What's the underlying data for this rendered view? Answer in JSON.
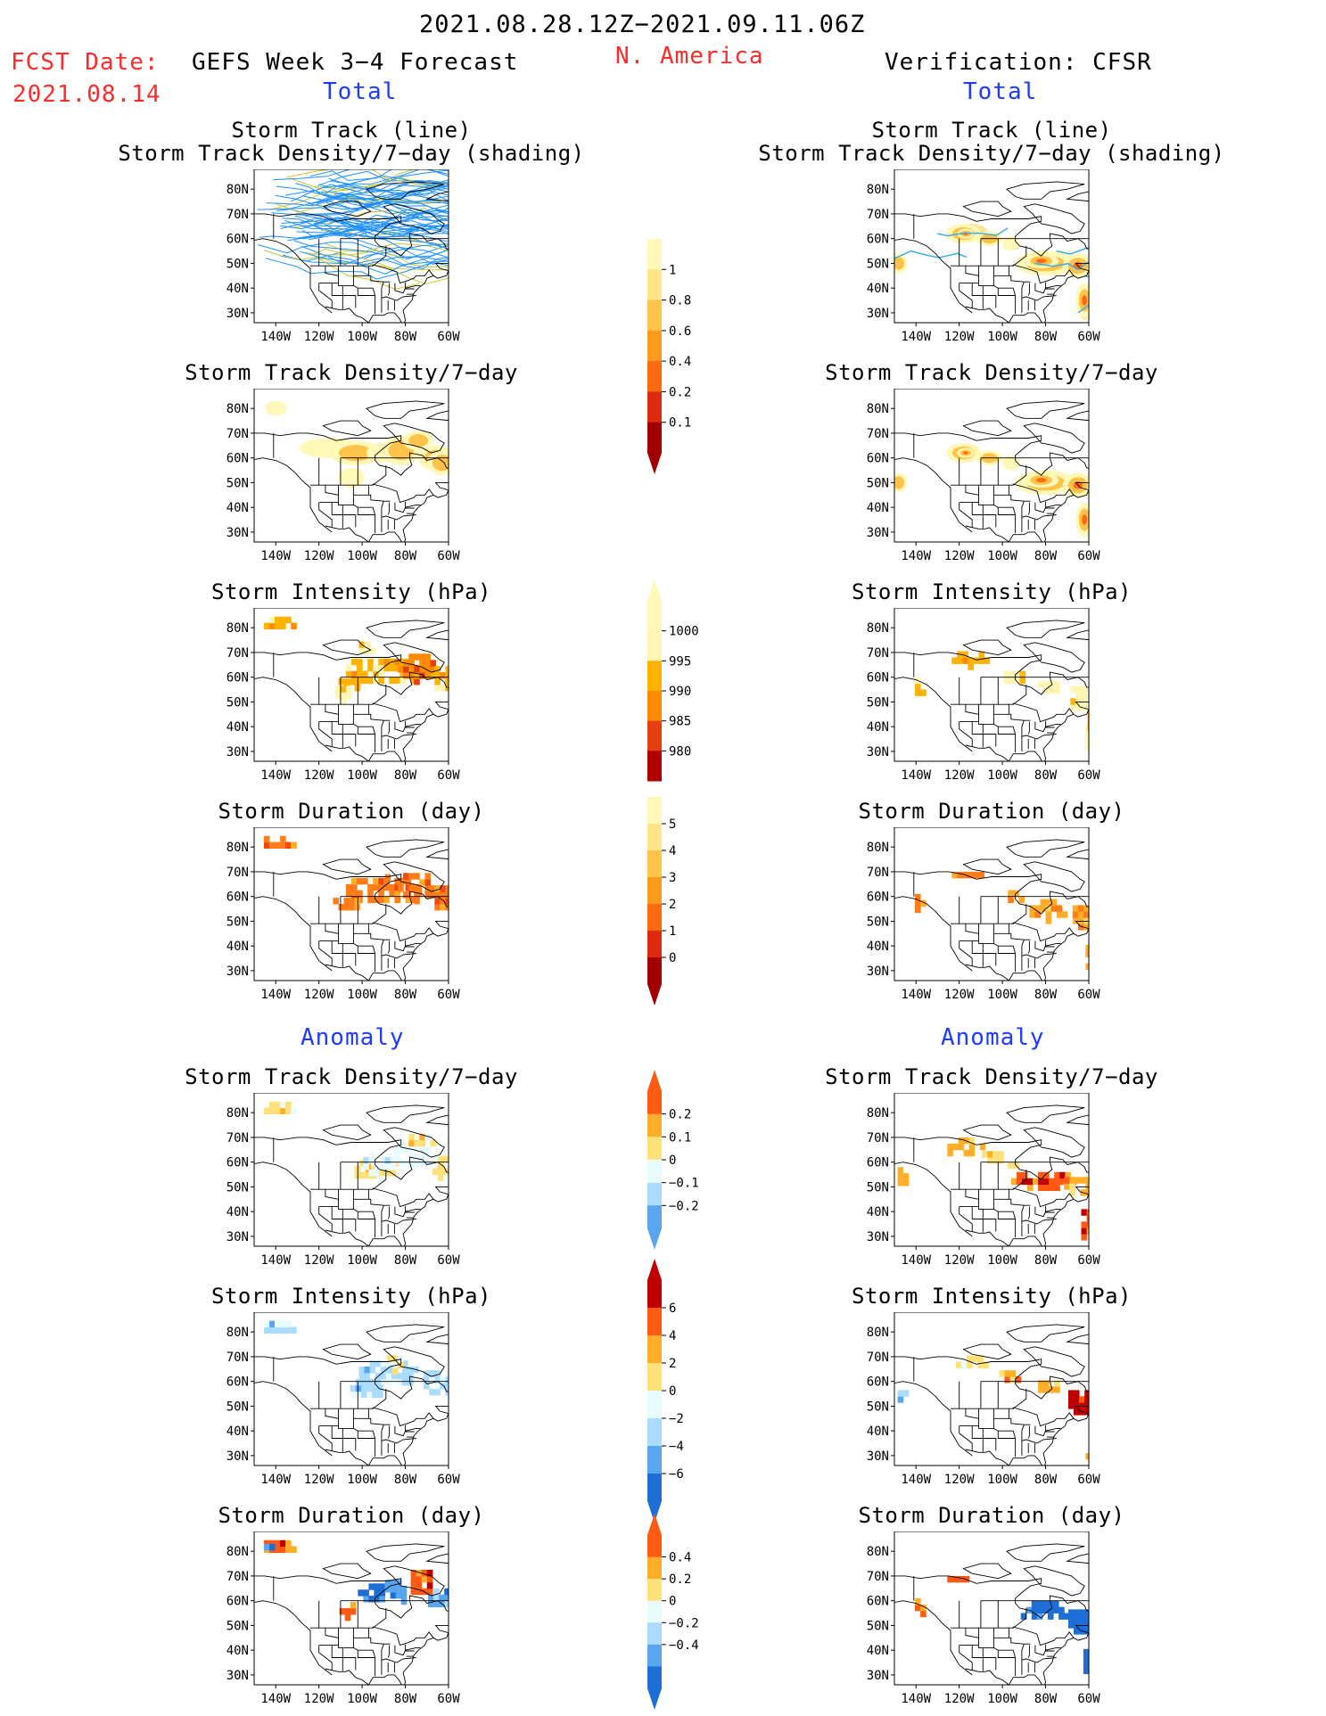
{
  "header": {
    "date_range": "2021.08.28.12Z−2021.09.11.06Z",
    "fcst_label": "FCST Date:",
    "fcst_date": "2021.08.14",
    "left_title": "GEFS Week 3−4 Forecast",
    "region": "N. America",
    "right_title": "Verification: CFSR",
    "left_total": "Total",
    "right_total": "Total",
    "left_anomaly": "Anomaly",
    "right_anomaly": "Anomaly"
  },
  "titles": {
    "storm_track_line": "Storm Track (line)",
    "storm_track_shading": "Storm Track Density/7−day (shading)",
    "density": "Storm Track Density/7−day",
    "intensity": "Storm Intensity (hPa)",
    "duration": "Storm Duration (day)"
  },
  "axes": {
    "lat_labels": [
      "80N",
      "70N",
      "60N",
      "50N",
      "40N",
      "30N"
    ],
    "lon_labels": [
      "140W",
      "120W",
      "100W",
      "80W",
      "60W"
    ]
  },
  "colorbars": {
    "density_total": [
      "1",
      "0.8",
      "0.6",
      "0.4",
      "0.2",
      "0.1"
    ],
    "intensity_total": [
      "1000",
      "995",
      "990",
      "985",
      "980"
    ],
    "duration_total": [
      "5",
      "4",
      "3",
      "2",
      "1",
      "0"
    ],
    "density_anom": [
      "0.2",
      "0.1",
      "0",
      "−0.1",
      "−0.2"
    ],
    "intensity_anom": [
      "6",
      "4",
      "2",
      "0",
      "−2",
      "−4",
      "−6"
    ],
    "duration_anom": [
      "0.4",
      "0.2",
      "0",
      "−0.2",
      "−0.4"
    ]
  },
  "colors": {
    "header_red": "#ff2a2a",
    "header_blue": "#1f3bff",
    "track_line_forecast": "#1e90ff",
    "track_line_verification": "#3bb0e0"
  }
}
